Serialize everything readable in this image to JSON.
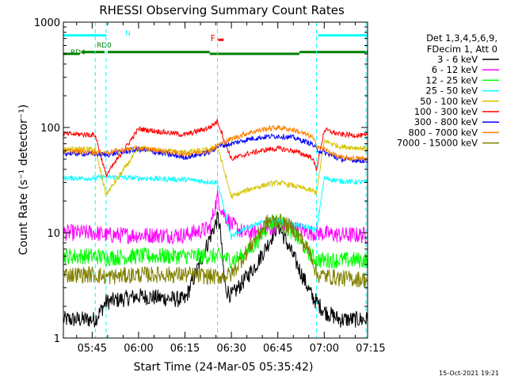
{
  "chart_data": {
    "type": "line",
    "title": "RHESSI Observing Summary Count Rates",
    "xlabel": "Start Time (24-Mar-05 05:35:42)",
    "ylabel": "Count Rate (s⁻¹ detector⁻¹)",
    "yscale": "log",
    "ylim": [
      1,
      1000
    ],
    "y_ticks": [
      "1",
      "10",
      "100",
      "1000"
    ],
    "xlim_minutes": [
      5.7,
      104
    ],
    "x_ticks": [
      {
        "label": "05:45",
        "minutes": 15
      },
      {
        "label": "06:00",
        "minutes": 30
      },
      {
        "label": "06:15",
        "minutes": 45
      },
      {
        "label": "06:30",
        "minutes": 60
      },
      {
        "label": "06:45",
        "minutes": 75
      },
      {
        "label": "07:00",
        "minutes": 90
      },
      {
        "label": "07:15",
        "minutes": 105
      }
    ],
    "legend_header": [
      "Det 1,3,4,5,6,9,",
      "FDecim 1, Att 0"
    ],
    "legend_position": "right",
    "timestamp": "15-Oct-2021 19:21",
    "flags": {
      "N": {
        "label": "N",
        "color": "#00ffff",
        "level": 750,
        "segments": [
          [
            5.7,
            19.5
          ],
          [
            88,
            104
          ]
        ]
      },
      "RD0": {
        "label": "RD0",
        "color": "#008000",
        "level": 520,
        "segments": [
          [
            11.5,
            19
          ],
          [
            20,
            53
          ],
          [
            82,
            104
          ]
        ]
      },
      "RD4": {
        "label": "RD4",
        "color": "#008000",
        "level": 500,
        "segments": [
          [
            5.7,
            11
          ],
          [
            53,
            82
          ]
        ]
      },
      "F": {
        "label": "F",
        "color": "#ff0000",
        "level": 680,
        "segments": [
          [
            55.7,
            57.5
          ]
        ]
      }
    },
    "night_boundaries_minutes": [
      16,
      19.5,
      55.5,
      87.5,
      103.5
    ],
    "series": [
      {
        "name": "3 - 6 keV",
        "color": "#000000",
        "x": [
          5.7,
          16,
          19.5,
          30,
          45,
          55.7,
          56.5,
          57,
          58,
          60,
          64,
          68,
          72,
          75,
          80,
          86,
          87.5,
          90,
          95,
          104
        ],
        "y": [
          1.5,
          1.5,
          2.2,
          2.5,
          2.3,
          14,
          10,
          6,
          3,
          2.5,
          3.5,
          5,
          8,
          12,
          6,
          2.5,
          2.2,
          1.8,
          1.5,
          1.5
        ]
      },
      {
        "name": "6 - 12 keV",
        "color": "#ff00ff",
        "x": [
          5.7,
          16,
          19.5,
          30,
          45,
          53,
          55.5,
          57,
          60,
          64,
          68,
          72,
          75,
          80,
          86,
          87.5,
          95,
          104
        ],
        "y": [
          10,
          10,
          9.5,
          9.5,
          9.5,
          11,
          22,
          16,
          12,
          10,
          10,
          11,
          12,
          11,
          10,
          10,
          9.5,
          9.5
        ]
      },
      {
        "name": "12 - 25 keV",
        "color": "#00ff00",
        "x": [
          5.7,
          16,
          19.5,
          30,
          45,
          55.5,
          60,
          64,
          68,
          72,
          75,
          80,
          86,
          87.5,
          95,
          104
        ],
        "y": [
          6,
          6,
          5.8,
          6,
          6,
          6,
          5.5,
          6,
          8,
          12,
          13,
          10,
          6,
          5.5,
          5.5,
          5.5
        ]
      },
      {
        "name": "25 - 50 keV",
        "color": "#00ffff",
        "x": [
          5.7,
          16,
          19.5,
          30,
          45,
          55.5,
          60,
          64,
          68,
          72,
          75,
          80,
          86,
          87.5,
          90,
          95,
          104
        ],
        "y": [
          33,
          33,
          34,
          33,
          32,
          30,
          9,
          11,
          12,
          13,
          13,
          12,
          11,
          10.5,
          33,
          31,
          30
        ]
      },
      {
        "name": "50 - 100 keV",
        "color": "#d4c400",
        "x": [
          5.7,
          16,
          19.5,
          30,
          45,
          53,
          55.5,
          60,
          66,
          72,
          75,
          80,
          86,
          87.5,
          90,
          95,
          104
        ],
        "y": [
          62,
          62,
          23,
          63,
          58,
          62,
          66,
          22,
          26,
          29,
          30,
          28,
          25,
          24,
          75,
          66,
          63
        ]
      },
      {
        "name": "100 - 300 keV",
        "color": "#ff0000",
        "x": [
          5.7,
          16,
          19.5,
          30,
          45,
          53,
          55.5,
          60,
          66,
          72,
          75,
          80,
          86,
          87.5,
          90,
          95,
          104
        ],
        "y": [
          87,
          85,
          35,
          97,
          85,
          100,
          115,
          50,
          57,
          62,
          63,
          60,
          52,
          40,
          95,
          86,
          83
        ]
      },
      {
        "name": "300 - 800 keV",
        "color": "#0000ff",
        "x": [
          5.7,
          16,
          19.5,
          30,
          45,
          53,
          55.5,
          60,
          66,
          72,
          75,
          80,
          86,
          87.5,
          95,
          104
        ],
        "y": [
          57,
          56,
          55,
          62,
          52,
          58,
          66,
          70,
          78,
          82,
          83,
          80,
          70,
          62,
          50,
          48
        ]
      },
      {
        "name": "800 - 7000 keV",
        "color": "#ff8000",
        "x": [
          5.7,
          16,
          19.5,
          30,
          45,
          53,
          55.5,
          60,
          66,
          72,
          75,
          80,
          86,
          87.5,
          95,
          104
        ],
        "y": [
          60,
          58,
          58,
          64,
          56,
          60,
          68,
          78,
          90,
          98,
          100,
          95,
          82,
          68,
          52,
          50
        ]
      },
      {
        "name": "7000 - 15000 keV",
        "color": "#808000",
        "x": [
          5.7,
          16,
          19.5,
          30,
          45,
          55.5,
          60,
          64,
          68,
          72,
          75,
          80,
          86,
          87.5,
          95,
          104
        ],
        "y": [
          4,
          4,
          3.8,
          4,
          4,
          3.8,
          4,
          6,
          9,
          13,
          13,
          11,
          6,
          4,
          3.7,
          3.6
        ]
      }
    ]
  }
}
